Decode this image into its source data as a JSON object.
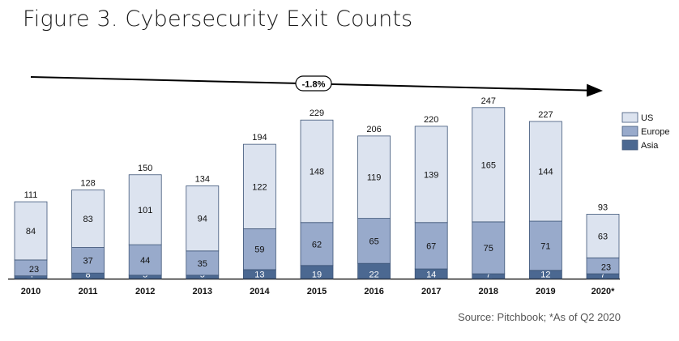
{
  "title": "Figure 3. Cybersecurity Exit Counts",
  "source_note": "Source: Pitchbook; *As of Q2 2020",
  "trend_label": "-1.8%",
  "colors": {
    "us": "#dce3ef",
    "europe": "#98aacb",
    "asia": "#4b6891",
    "border": "#3f5678",
    "text": "#111111"
  },
  "chart_data": {
    "type": "bar",
    "stacked": true,
    "categories": [
      "2010",
      "2011",
      "2012",
      "2013",
      "2014",
      "2015",
      "2016",
      "2017",
      "2018",
      "2019",
      "2020*"
    ],
    "series": [
      {
        "name": "Asia",
        "values": [
          4,
          8,
          5,
          5,
          13,
          19,
          22,
          14,
          7,
          12,
          7
        ]
      },
      {
        "name": "Europe",
        "values": [
          23,
          37,
          44,
          35,
          59,
          62,
          65,
          67,
          75,
          71,
          23
        ]
      },
      {
        "name": "US",
        "values": [
          84,
          83,
          101,
          94,
          122,
          148,
          119,
          139,
          165,
          144,
          63
        ]
      }
    ],
    "totals": [
      111,
      128,
      150,
      134,
      194,
      229,
      206,
      220,
      247,
      227,
      93
    ],
    "legend": [
      "US",
      "Europe",
      "Asia"
    ],
    "legend_position": "right",
    "annotation": "-1.8%",
    "title": "Figure 3. Cybersecurity Exit Counts",
    "xlabel": "",
    "ylabel": "",
    "ylim": [
      0,
      250
    ],
    "grid": false
  }
}
